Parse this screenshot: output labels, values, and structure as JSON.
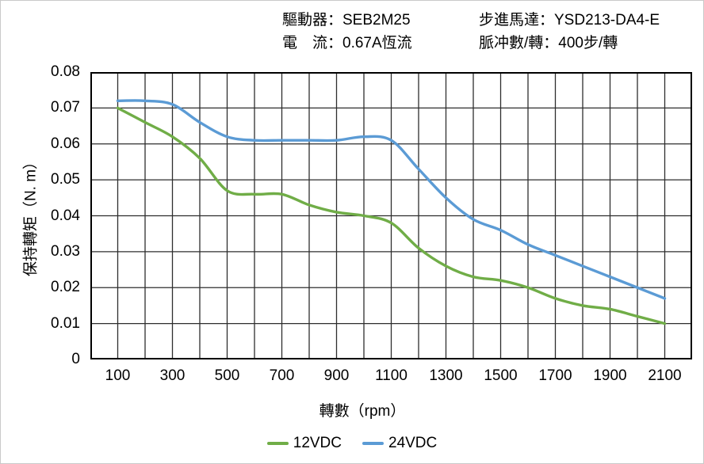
{
  "header": {
    "items_left": [
      "驅動器：SEB2M25",
      "電　流：0.67A恆流"
    ],
    "items_right": [
      "步進馬達：YSD213-DA4-E",
      "脈冲數/轉：400步/轉"
    ]
  },
  "chart_data": {
    "type": "line",
    "title": "",
    "xlabel": "轉數（rpm）",
    "ylabel": "保持轉矩（N. m）",
    "x": [
      100,
      200,
      300,
      400,
      500,
      600,
      700,
      800,
      900,
      1000,
      1100,
      1200,
      1300,
      1400,
      1500,
      1600,
      1700,
      1800,
      1900,
      2000,
      2100
    ],
    "series": [
      {
        "name": "12VDC",
        "color": "#70AD47",
        "values": [
          0.07,
          0.066,
          0.062,
          0.056,
          0.047,
          0.046,
          0.046,
          0.043,
          0.041,
          0.04,
          0.038,
          0.031,
          0.026,
          0.023,
          0.022,
          0.02,
          0.017,
          0.015,
          0.014,
          0.012,
          0.01
        ]
      },
      {
        "name": "24VDC",
        "color": "#5B9BD5",
        "values": [
          0.072,
          0.072,
          0.071,
          0.066,
          0.062,
          0.061,
          0.061,
          0.061,
          0.061,
          0.062,
          0.061,
          0.053,
          0.045,
          0.039,
          0.036,
          0.032,
          0.029,
          0.026,
          0.023,
          0.02,
          0.017
        ]
      }
    ],
    "xlim": [
      0,
      2200
    ],
    "ylim": [
      0,
      0.08
    ],
    "x_grid_step": 100,
    "y_grid_step": 0.01,
    "x_ticks": [
      100,
      300,
      500,
      700,
      900,
      1100,
      1300,
      1500,
      1700,
      1900,
      2100
    ],
    "y_tick_values": [
      0,
      0.01,
      0.02,
      0.03,
      0.04,
      0.05,
      0.06,
      0.07,
      0.08
    ],
    "y_tick_labels": [
      "0",
      "0.01",
      "0.02",
      "0.03",
      "0.04",
      "0.05",
      "0.06",
      "0.07",
      "0.08"
    ],
    "grid": true,
    "legend_position": "bottom",
    "gridline_color": "#2e2e2e",
    "axis_color": "#000000",
    "plot_background": "#ffffff"
  }
}
